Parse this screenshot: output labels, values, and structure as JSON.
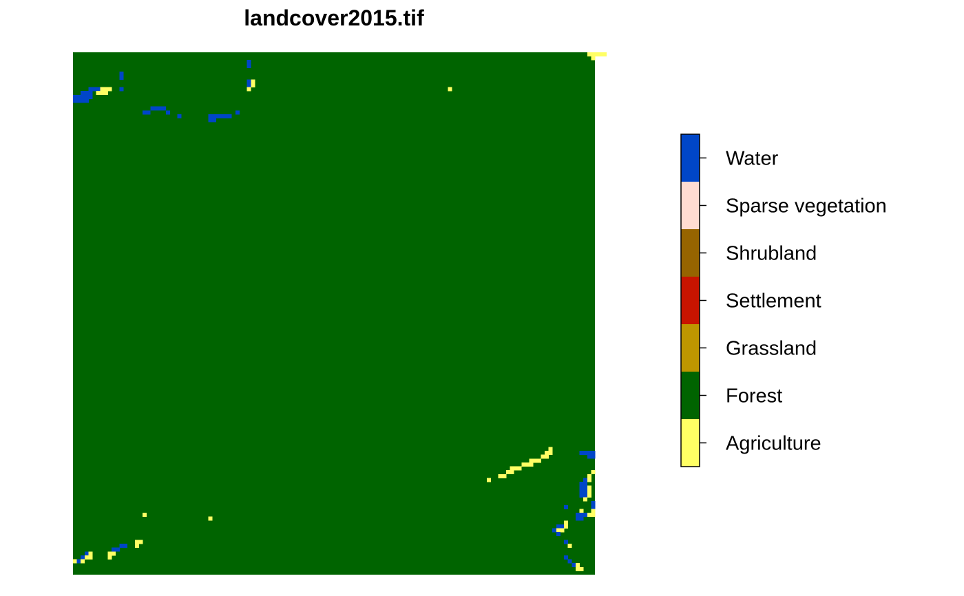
{
  "chart_data": {
    "type": "heatmap",
    "title": "landcover2015.tif",
    "background_class": "Forest",
    "legend": {
      "placement": "right",
      "classes": [
        {
          "name": "Water",
          "color": "#0046C8"
        },
        {
          "name": "Sparse vegetation",
          "color": "#FFDCD2"
        },
        {
          "name": "Shrubland",
          "color": "#966400"
        },
        {
          "name": "Settlement",
          "color": "#C81400"
        },
        {
          "name": "Grassland",
          "color": "#BE9600"
        },
        {
          "name": "Forest",
          "color": "#006400"
        },
        {
          "name": "Agriculture",
          "color": "#FFFF64"
        }
      ]
    },
    "cell_runs": [
      {
        "class": "Agriculture",
        "row": 0,
        "col": 133,
        "length": 5
      },
      {
        "class": "Agriculture",
        "row": 1,
        "col": 134,
        "length": 1
      },
      {
        "class": "Water",
        "row": 2,
        "col": 45,
        "length": 1
      },
      {
        "class": "Water",
        "row": 3,
        "col": 45,
        "length": 1
      },
      {
        "class": "Water",
        "row": 5,
        "col": 12,
        "length": 1
      },
      {
        "class": "Water",
        "row": 6,
        "col": 12,
        "length": 1
      },
      {
        "class": "Water",
        "row": 7,
        "col": 45,
        "length": 1
      },
      {
        "class": "Agriculture",
        "row": 7,
        "col": 46,
        "length": 1
      },
      {
        "class": "Water",
        "row": 8,
        "col": 45,
        "length": 1
      },
      {
        "class": "Agriculture",
        "row": 8,
        "col": 46,
        "length": 1
      },
      {
        "class": "Water",
        "row": 9,
        "col": 4,
        "length": 3
      },
      {
        "class": "Agriculture",
        "row": 9,
        "col": 7,
        "length": 3
      },
      {
        "class": "Water",
        "row": 9,
        "col": 12,
        "length": 1
      },
      {
        "class": "Agriculture",
        "row": 9,
        "col": 45,
        "length": 1
      },
      {
        "class": "Agriculture",
        "row": 9,
        "col": 97,
        "length": 1
      },
      {
        "class": "Water",
        "row": 10,
        "col": 2,
        "length": 3
      },
      {
        "class": "Agriculture",
        "row": 10,
        "col": 6,
        "length": 3
      },
      {
        "class": "Water",
        "row": 11,
        "col": 0,
        "length": 5
      },
      {
        "class": "Water",
        "row": 12,
        "col": 0,
        "length": 4
      },
      {
        "class": "Water",
        "row": 14,
        "col": 20,
        "length": 4
      },
      {
        "class": "Water",
        "row": 15,
        "col": 18,
        "length": 2
      },
      {
        "class": "Water",
        "row": 15,
        "col": 24,
        "length": 1
      },
      {
        "class": "Water",
        "row": 15,
        "col": 42,
        "length": 1
      },
      {
        "class": "Water",
        "row": 16,
        "col": 27,
        "length": 1
      },
      {
        "class": "Water",
        "row": 16,
        "col": 35,
        "length": 6
      },
      {
        "class": "Water",
        "row": 17,
        "col": 35,
        "length": 2
      },
      {
        "class": "Agriculture",
        "row": 102,
        "col": 123,
        "length": 1
      },
      {
        "class": "Agriculture",
        "row": 103,
        "col": 122,
        "length": 2
      },
      {
        "class": "Water",
        "row": 103,
        "col": 131,
        "length": 4
      },
      {
        "class": "Agriculture",
        "row": 104,
        "col": 121,
        "length": 2
      },
      {
        "class": "Water",
        "row": 104,
        "col": 133,
        "length": 2
      },
      {
        "class": "Agriculture",
        "row": 105,
        "col": 118,
        "length": 3
      },
      {
        "class": "Agriculture",
        "row": 106,
        "col": 116,
        "length": 3
      },
      {
        "class": "Agriculture",
        "row": 107,
        "col": 113,
        "length": 3
      },
      {
        "class": "Agriculture",
        "row": 108,
        "col": 112,
        "length": 2
      },
      {
        "class": "Agriculture",
        "row": 108,
        "col": 134,
        "length": 1
      },
      {
        "class": "Agriculture",
        "row": 109,
        "col": 110,
        "length": 2
      },
      {
        "class": "Agriculture",
        "row": 109,
        "col": 133,
        "length": 1
      },
      {
        "class": "Agriculture",
        "row": 110,
        "col": 107,
        "length": 1
      },
      {
        "class": "Water",
        "row": 110,
        "col": 132,
        "length": 1
      },
      {
        "class": "Agriculture",
        "row": 110,
        "col": 133,
        "length": 1
      },
      {
        "class": "Water",
        "row": 111,
        "col": 131,
        "length": 2
      },
      {
        "class": "Water",
        "row": 112,
        "col": 131,
        "length": 2
      },
      {
        "class": "Agriculture",
        "row": 112,
        "col": 133,
        "length": 1
      },
      {
        "class": "Water",
        "row": 113,
        "col": 131,
        "length": 2
      },
      {
        "class": "Agriculture",
        "row": 113,
        "col": 133,
        "length": 1
      },
      {
        "class": "Water",
        "row": 114,
        "col": 131,
        "length": 2
      },
      {
        "class": "Agriculture",
        "row": 114,
        "col": 133,
        "length": 1
      },
      {
        "class": "Agriculture",
        "row": 115,
        "col": 132,
        "length": 1
      },
      {
        "class": "Water",
        "row": 116,
        "col": 134,
        "length": 1
      },
      {
        "class": "Water",
        "row": 117,
        "col": 127,
        "length": 1
      },
      {
        "class": "Water",
        "row": 117,
        "col": 134,
        "length": 1
      },
      {
        "class": "Agriculture",
        "row": 118,
        "col": 131,
        "length": 1
      },
      {
        "class": "Agriculture",
        "row": 118,
        "col": 134,
        "length": 1
      },
      {
        "class": "Agriculture",
        "row": 119,
        "col": 18,
        "length": 1
      },
      {
        "class": "Water",
        "row": 119,
        "col": 130,
        "length": 3
      },
      {
        "class": "Agriculture",
        "row": 119,
        "col": 133,
        "length": 2
      },
      {
        "class": "Agriculture",
        "row": 120,
        "col": 35,
        "length": 1
      },
      {
        "class": "Water",
        "row": 120,
        "col": 130,
        "length": 2
      },
      {
        "class": "Agriculture",
        "row": 121,
        "col": 127,
        "length": 1
      },
      {
        "class": "Water",
        "row": 122,
        "col": 125,
        "length": 2
      },
      {
        "class": "Agriculture",
        "row": 122,
        "col": 127,
        "length": 1
      },
      {
        "class": "Water",
        "row": 123,
        "col": 124,
        "length": 1
      },
      {
        "class": "Agriculture",
        "row": 123,
        "col": 125,
        "length": 2
      },
      {
        "class": "Water",
        "row": 124,
        "col": 125,
        "length": 1
      },
      {
        "class": "Agriculture",
        "row": 126,
        "col": 16,
        "length": 2
      },
      {
        "class": "Water",
        "row": 126,
        "col": 127,
        "length": 1
      },
      {
        "class": "Water",
        "row": 127,
        "col": 12,
        "length": 2
      },
      {
        "class": "Agriculture",
        "row": 127,
        "col": 16,
        "length": 1
      },
      {
        "class": "Agriculture",
        "row": 127,
        "col": 128,
        "length": 1
      },
      {
        "class": "Water",
        "row": 128,
        "col": 10,
        "length": 2
      },
      {
        "class": "Water",
        "row": 129,
        "col": 3,
        "length": 1
      },
      {
        "class": "Agriculture",
        "row": 129,
        "col": 4,
        "length": 1
      },
      {
        "class": "Agriculture",
        "row": 129,
        "col": 9,
        "length": 2
      },
      {
        "class": "Water",
        "row": 130,
        "col": 2,
        "length": 1
      },
      {
        "class": "Agriculture",
        "row": 130,
        "col": 3,
        "length": 2
      },
      {
        "class": "Agriculture",
        "row": 130,
        "col": 9,
        "length": 1
      },
      {
        "class": "Water",
        "row": 130,
        "col": 127,
        "length": 1
      },
      {
        "class": "Agriculture",
        "row": 131,
        "col": 0,
        "length": 1
      },
      {
        "class": "Water",
        "row": 131,
        "col": 1,
        "length": 1
      },
      {
        "class": "Agriculture",
        "row": 131,
        "col": 2,
        "length": 1
      },
      {
        "class": "Water",
        "row": 131,
        "col": 128,
        "length": 1
      },
      {
        "class": "Water",
        "row": 132,
        "col": 129,
        "length": 1
      },
      {
        "class": "Agriculture",
        "row": 132,
        "col": 130,
        "length": 1
      },
      {
        "class": "Agriculture",
        "row": 133,
        "col": 130,
        "length": 2
      }
    ]
  }
}
